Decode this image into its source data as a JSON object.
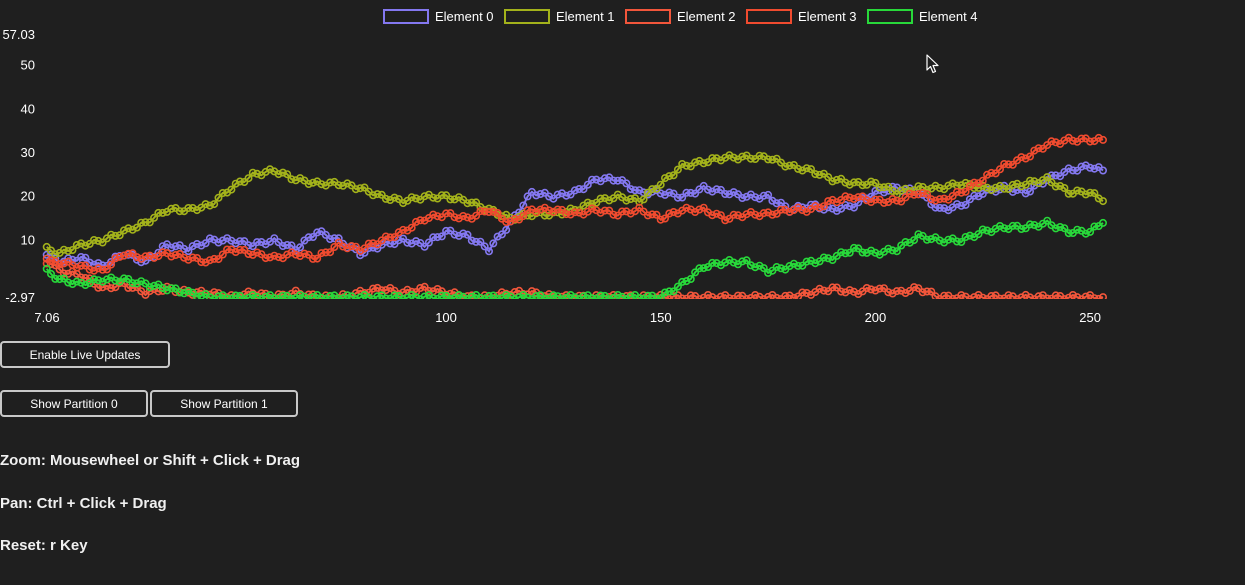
{
  "chart_data": {
    "type": "line",
    "title": "",
    "xlabel": "",
    "ylabel": "",
    "xlim": [
      7.06,
      253
    ],
    "ylim": [
      -2.97,
      57.03
    ],
    "x_ticks": [
      "7.06",
      "100",
      "150",
      "200",
      "250"
    ],
    "y_ticks": [
      "57.03",
      "50",
      "40",
      "30",
      "20",
      "10",
      "-2.97"
    ],
    "legend_position": "top-center",
    "grid": false,
    "markers": "circle",
    "series": [
      {
        "name": "Element 0",
        "color": "#8478f0",
        "points": [
          [
            7,
            7
          ],
          [
            10,
            5
          ],
          [
            15,
            6
          ],
          [
            20,
            4
          ],
          [
            25,
            7
          ],
          [
            30,
            5
          ],
          [
            35,
            9
          ],
          [
            40,
            8
          ],
          [
            45,
            10
          ],
          [
            50,
            10
          ],
          [
            55,
            9
          ],
          [
            60,
            10
          ],
          [
            65,
            8
          ],
          [
            70,
            12
          ],
          [
            75,
            10
          ],
          [
            80,
            7
          ],
          [
            85,
            9
          ],
          [
            90,
            10
          ],
          [
            95,
            9
          ],
          [
            100,
            12
          ],
          [
            105,
            11
          ],
          [
            110,
            8
          ],
          [
            115,
            14
          ],
          [
            120,
            21
          ],
          [
            125,
            20
          ],
          [
            130,
            21
          ],
          [
            135,
            24
          ],
          [
            140,
            24
          ],
          [
            145,
            21
          ],
          [
            150,
            21
          ],
          [
            155,
            20
          ],
          [
            160,
            22
          ],
          [
            165,
            21
          ],
          [
            170,
            20
          ],
          [
            175,
            20
          ],
          [
            180,
            17
          ],
          [
            185,
            18
          ],
          [
            190,
            17
          ],
          [
            195,
            18
          ],
          [
            200,
            21
          ],
          [
            205,
            22
          ],
          [
            210,
            21
          ],
          [
            215,
            17
          ],
          [
            220,
            18
          ],
          [
            225,
            21
          ],
          [
            230,
            22
          ],
          [
            235,
            21
          ],
          [
            240,
            24
          ],
          [
            245,
            26
          ],
          [
            250,
            27
          ],
          [
            253,
            26
          ]
        ]
      },
      {
        "name": "Element 1",
        "color": "#a3b21b",
        "points": [
          [
            7,
            8
          ],
          [
            10,
            7
          ],
          [
            15,
            9
          ],
          [
            20,
            10
          ],
          [
            25,
            12
          ],
          [
            30,
            14
          ],
          [
            35,
            17
          ],
          [
            40,
            17
          ],
          [
            45,
            18
          ],
          [
            50,
            22
          ],
          [
            55,
            25
          ],
          [
            60,
            26
          ],
          [
            65,
            24
          ],
          [
            70,
            23
          ],
          [
            75,
            23
          ],
          [
            80,
            22
          ],
          [
            85,
            20
          ],
          [
            90,
            19
          ],
          [
            95,
            20
          ],
          [
            100,
            20
          ],
          [
            105,
            19
          ],
          [
            110,
            17
          ],
          [
            115,
            15
          ],
          [
            120,
            16
          ],
          [
            125,
            16
          ],
          [
            130,
            17
          ],
          [
            135,
            19
          ],
          [
            140,
            20
          ],
          [
            145,
            19
          ],
          [
            150,
            23
          ],
          [
            155,
            27
          ],
          [
            160,
            28
          ],
          [
            165,
            29
          ],
          [
            170,
            29
          ],
          [
            175,
            29
          ],
          [
            180,
            27
          ],
          [
            185,
            26
          ],
          [
            190,
            24
          ],
          [
            195,
            23
          ],
          [
            200,
            23
          ],
          [
            205,
            21
          ],
          [
            210,
            22
          ],
          [
            215,
            22
          ],
          [
            220,
            23
          ],
          [
            225,
            22
          ],
          [
            230,
            22
          ],
          [
            235,
            23
          ],
          [
            240,
            24
          ],
          [
            245,
            21
          ],
          [
            250,
            21
          ],
          [
            253,
            19
          ]
        ]
      },
      {
        "name": "Element 2",
        "color": "#f2563b",
        "points": [
          [
            7,
            6
          ],
          [
            10,
            3
          ],
          [
            15,
            2
          ],
          [
            20,
            -1
          ],
          [
            25,
            0
          ],
          [
            30,
            -2
          ],
          [
            35,
            -1
          ],
          [
            40,
            -2
          ],
          [
            45,
            -2
          ],
          [
            50,
            -3
          ],
          [
            55,
            -2
          ],
          [
            60,
            -3
          ],
          [
            65,
            -2
          ],
          [
            70,
            -3
          ],
          [
            75,
            -3
          ],
          [
            80,
            -2
          ],
          [
            85,
            -1
          ],
          [
            90,
            -2
          ],
          [
            95,
            -1
          ],
          [
            100,
            -2
          ],
          [
            105,
            -3
          ],
          [
            110,
            -3
          ],
          [
            115,
            -2
          ],
          [
            120,
            -2
          ],
          [
            125,
            -3
          ],
          [
            130,
            -3
          ],
          [
            135,
            -3
          ],
          [
            140,
            -3
          ],
          [
            145,
            -3
          ],
          [
            150,
            -3
          ],
          [
            155,
            -3
          ],
          [
            160,
            -3
          ],
          [
            165,
            -3
          ],
          [
            170,
            -3
          ],
          [
            175,
            -3
          ],
          [
            180,
            -3
          ],
          [
            185,
            -2
          ],
          [
            190,
            -1
          ],
          [
            195,
            -2
          ],
          [
            200,
            -1
          ],
          [
            205,
            -2
          ],
          [
            210,
            -1
          ],
          [
            215,
            -3
          ],
          [
            220,
            -3
          ],
          [
            225,
            -3
          ],
          [
            230,
            -3
          ],
          [
            235,
            -3
          ],
          [
            240,
            -3
          ],
          [
            245,
            -3
          ],
          [
            250,
            -3
          ],
          [
            253,
            -3
          ]
        ]
      },
      {
        "name": "Element 3",
        "color": "#f04b2f",
        "points": [
          [
            7,
            5
          ],
          [
            10,
            5
          ],
          [
            15,
            4
          ],
          [
            20,
            3
          ],
          [
            25,
            7
          ],
          [
            30,
            6
          ],
          [
            35,
            7
          ],
          [
            40,
            6
          ],
          [
            45,
            5
          ],
          [
            50,
            8
          ],
          [
            55,
            7
          ],
          [
            60,
            6
          ],
          [
            65,
            7
          ],
          [
            70,
            6
          ],
          [
            75,
            9
          ],
          [
            80,
            8
          ],
          [
            85,
            10
          ],
          [
            90,
            12
          ],
          [
            95,
            15
          ],
          [
            100,
            16
          ],
          [
            105,
            15
          ],
          [
            110,
            17
          ],
          [
            115,
            14
          ],
          [
            120,
            17
          ],
          [
            125,
            17
          ],
          [
            130,
            16
          ],
          [
            135,
            17
          ],
          [
            140,
            16
          ],
          [
            145,
            17
          ],
          [
            150,
            15
          ],
          [
            155,
            17
          ],
          [
            160,
            17
          ],
          [
            165,
            15
          ],
          [
            170,
            16
          ],
          [
            175,
            16
          ],
          [
            180,
            17
          ],
          [
            185,
            17
          ],
          [
            190,
            19
          ],
          [
            195,
            20
          ],
          [
            200,
            19
          ],
          [
            205,
            19
          ],
          [
            210,
            21
          ],
          [
            215,
            19
          ],
          [
            220,
            21
          ],
          [
            225,
            24
          ],
          [
            230,
            27
          ],
          [
            235,
            29
          ],
          [
            240,
            32
          ],
          [
            245,
            33
          ],
          [
            250,
            33
          ],
          [
            253,
            33
          ]
        ]
      },
      {
        "name": "Element 4",
        "color": "#28d83a",
        "points": [
          [
            7,
            3
          ],
          [
            10,
            1
          ],
          [
            15,
            0
          ],
          [
            20,
            1
          ],
          [
            25,
            1
          ],
          [
            30,
            0
          ],
          [
            35,
            -1
          ],
          [
            40,
            -2
          ],
          [
            45,
            -3
          ],
          [
            50,
            -3
          ],
          [
            55,
            -3
          ],
          [
            60,
            -3
          ],
          [
            65,
            -3
          ],
          [
            70,
            -3
          ],
          [
            75,
            -3
          ],
          [
            80,
            -3
          ],
          [
            85,
            -3
          ],
          [
            90,
            -3
          ],
          [
            95,
            -3
          ],
          [
            100,
            -3
          ],
          [
            105,
            -3
          ],
          [
            110,
            -3
          ],
          [
            115,
            -3
          ],
          [
            120,
            -3
          ],
          [
            125,
            -3
          ],
          [
            130,
            -3
          ],
          [
            135,
            -3
          ],
          [
            140,
            -3
          ],
          [
            145,
            -3
          ],
          [
            150,
            -3
          ],
          [
            155,
            0
          ],
          [
            160,
            4
          ],
          [
            165,
            5
          ],
          [
            170,
            5
          ],
          [
            175,
            3
          ],
          [
            180,
            4
          ],
          [
            185,
            5
          ],
          [
            190,
            6
          ],
          [
            195,
            8
          ],
          [
            200,
            7
          ],
          [
            205,
            8
          ],
          [
            210,
            11
          ],
          [
            215,
            10
          ],
          [
            220,
            10
          ],
          [
            225,
            12
          ],
          [
            230,
            13
          ],
          [
            235,
            13
          ],
          [
            240,
            14
          ],
          [
            245,
            12
          ],
          [
            250,
            12
          ],
          [
            253,
            14
          ]
        ]
      }
    ]
  },
  "buttons": {
    "live_updates": "Enable Live Updates",
    "partition_0": "Show Partition 0",
    "partition_1": "Show Partition 1"
  },
  "hints": {
    "zoom": "Zoom: Mousewheel or Shift + Click + Drag",
    "pan": "Pan: Ctrl + Click + Drag",
    "reset": "Reset: r Key"
  },
  "colors": {
    "background": "#1f1f1f",
    "axis_text": "#ffffff",
    "button_border": "#c8c8c8"
  },
  "cursor_icon": "arrow-cursor-icon"
}
